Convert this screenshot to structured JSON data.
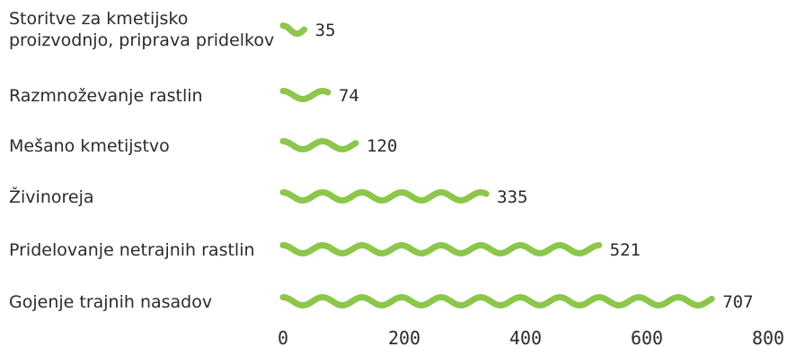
{
  "colors": {
    "bar": "#8cc64b",
    "text": "#2b2b2b"
  },
  "chart_data": {
    "type": "bar",
    "orientation": "horizontal",
    "title": "",
    "xlabel": "",
    "ylabel": "",
    "categories": [
      [
        "Storitve za kmetijsko",
        "proizvodnjo, priprava pridelkov"
      ],
      [
        "Razmnoževanje rastlin"
      ],
      [
        "Mešano kmetijstvo"
      ],
      [
        "Živinoreja"
      ],
      [
        "Pridelovanje netrajnih rastlin"
      ],
      [
        "Gojenje trajnih nasadov"
      ]
    ],
    "values": [
      35,
      74,
      120,
      335,
      521,
      707
    ],
    "value_labels": [
      "35",
      "74",
      "120",
      "335",
      "521",
      "707"
    ],
    "xlim": [
      0,
      800
    ],
    "xticks": [
      0,
      200,
      400,
      600,
      800
    ],
    "xtick_labels": [
      "0",
      "200",
      "400",
      "600",
      "800"
    ],
    "grid": false,
    "legend": "none"
  }
}
